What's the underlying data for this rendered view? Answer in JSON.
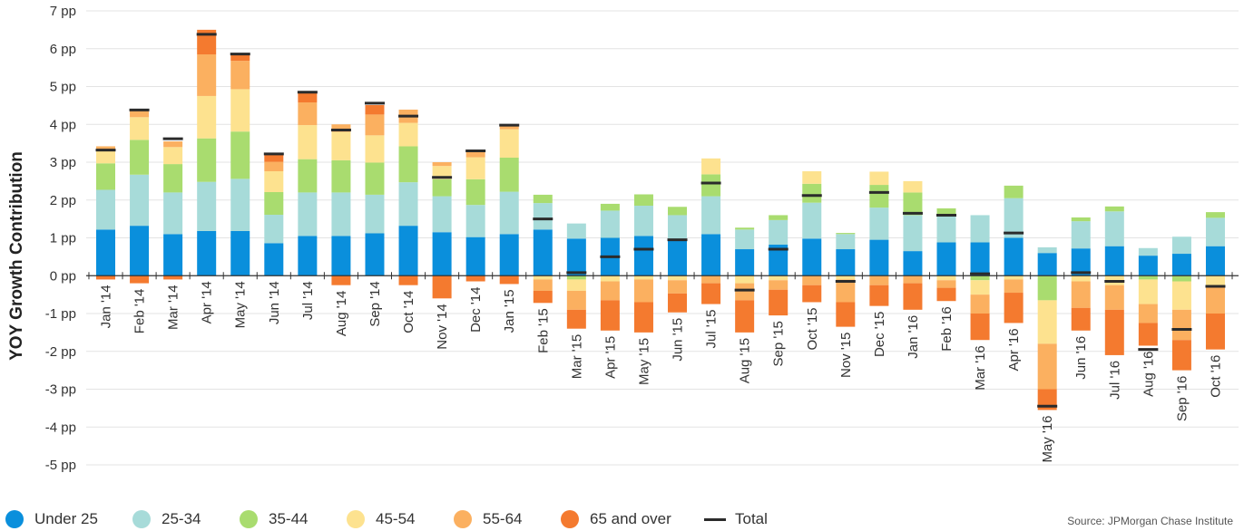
{
  "chart_data": {
    "type": "bar",
    "stacked": true,
    "ylabel": "YOY Growth Contribution",
    "ylim": [
      -5,
      7
    ],
    "yticks": [
      {
        "value": 7,
        "label": "7 pp"
      },
      {
        "value": 6,
        "label": "6 pp"
      },
      {
        "value": 5,
        "label": "5 pp"
      },
      {
        "value": 4,
        "label": "4 pp"
      },
      {
        "value": 3,
        "label": "3 pp"
      },
      {
        "value": 2,
        "label": "2 pp"
      },
      {
        "value": 1,
        "label": "1 pp"
      },
      {
        "value": 0,
        "label": "0 pp"
      },
      {
        "value": -1,
        "label": "-1 pp"
      },
      {
        "value": -2,
        "label": "-2 pp"
      },
      {
        "value": -3,
        "label": "-3 pp"
      },
      {
        "value": -4,
        "label": "-4 pp"
      },
      {
        "value": -5,
        "label": "-5 pp"
      }
    ],
    "grid": true,
    "legend_position": "bottom",
    "categories": [
      "Jan '14",
      "Feb '14",
      "Mar '14",
      "Apr '14",
      "May '14",
      "Jun '14",
      "Jul '14",
      "Aug '14",
      "Sep '14",
      "Oct '14",
      "Nov '14",
      "Dec '14",
      "Jan '15",
      "Feb '15",
      "Mar '15",
      "Apr '15",
      "May '15",
      "Jun '15",
      "Jul '15",
      "Aug '15",
      "Sep '15",
      "Oct '15",
      "Nov '15",
      "Dec '15",
      "Jan '16",
      "Feb '16",
      "Mar '16",
      "Apr '16",
      "May '16",
      "Jun '16",
      "Jul '16",
      "Aug '16",
      "Sep '16",
      "Oct '16"
    ],
    "series": [
      {
        "name": "Under 25",
        "color": "#0a8fdc",
        "values": [
          1.22,
          1.32,
          1.1,
          1.18,
          1.18,
          0.86,
          1.05,
          1.05,
          1.12,
          1.32,
          1.15,
          1.02,
          1.1,
          1.22,
          0.98,
          1.0,
          1.05,
          0.92,
          1.1,
          0.7,
          0.82,
          0.98,
          0.7,
          0.95,
          0.65,
          0.88,
          0.88,
          1.0,
          0.6,
          0.72,
          0.78,
          0.53,
          0.58,
          0.78
        ]
      },
      {
        "name": "25-34",
        "color": "#a7dbd9",
        "values": [
          1.05,
          1.35,
          1.1,
          1.3,
          1.38,
          0.75,
          1.15,
          1.15,
          1.02,
          1.15,
          0.95,
          0.85,
          1.12,
          0.7,
          0.4,
          0.72,
          0.8,
          0.68,
          1.0,
          0.52,
          0.65,
          0.95,
          0.4,
          0.85,
          0.95,
          0.7,
          0.72,
          1.05,
          0.15,
          0.72,
          0.92,
          0.2,
          0.45,
          0.75
        ]
      },
      {
        "name": "35-44",
        "color": "#a9dc6f",
        "values": [
          0.7,
          0.92,
          0.75,
          1.15,
          1.25,
          0.6,
          0.88,
          0.85,
          0.85,
          0.95,
          0.45,
          0.68,
          0.9,
          0.22,
          -0.1,
          0.18,
          0.3,
          0.22,
          0.58,
          0.05,
          0.13,
          0.5,
          0.03,
          0.6,
          0.6,
          0.2,
          -0.12,
          0.33,
          -0.65,
          0.1,
          0.13,
          -0.1,
          -0.15,
          0.15
        ]
      },
      {
        "name": "45-54",
        "color": "#fde28f",
        "values": [
          0.35,
          0.6,
          0.45,
          1.12,
          1.12,
          0.55,
          0.9,
          0.75,
          0.72,
          0.62,
          0.35,
          0.58,
          0.75,
          -0.1,
          -0.3,
          -0.15,
          -0.1,
          -0.12,
          0.42,
          -0.2,
          -0.12,
          0.33,
          -0.1,
          0.35,
          0.3,
          -0.12,
          -0.38,
          -0.1,
          -1.15,
          -0.15,
          -0.25,
          -0.65,
          -0.75,
          -0.3
        ]
      },
      {
        "name": "55-64",
        "color": "#fbb060",
        "values": [
          0.1,
          0.2,
          0.15,
          1.1,
          0.75,
          0.25,
          0.6,
          0.2,
          0.55,
          0.35,
          0.1,
          0.2,
          0.1,
          -0.3,
          -0.5,
          -0.5,
          -0.6,
          -0.35,
          -0.2,
          -0.45,
          -0.25,
          -0.25,
          -0.6,
          -0.25,
          -0.2,
          -0.2,
          -0.5,
          -0.35,
          -1.2,
          -0.7,
          -0.65,
          -0.5,
          -0.8,
          -0.7
        ]
      },
      {
        "name": "65 and over",
        "color": "#f47a2f",
        "values": [
          -0.1,
          -0.2,
          -0.1,
          0.65,
          0.15,
          0.2,
          0.25,
          -0.25,
          0.25,
          -0.25,
          -0.6,
          -0.15,
          -0.22,
          -0.32,
          -0.5,
          -0.8,
          -0.8,
          -0.5,
          -0.55,
          -0.85,
          -0.68,
          -0.45,
          -0.65,
          -0.55,
          -0.7,
          -0.35,
          -0.7,
          -0.8,
          -0.55,
          -0.6,
          -1.2,
          -0.6,
          -0.8,
          -0.95
        ]
      },
      {
        "name": "Total",
        "color": "#2b2b2b",
        "type": "marker",
        "values": [
          3.32,
          4.38,
          3.62,
          6.38,
          5.86,
          3.22,
          4.85,
          3.85,
          4.56,
          4.22,
          2.6,
          3.3,
          3.98,
          1.5,
          0.08,
          0.5,
          0.7,
          0.95,
          2.45,
          -0.38,
          0.7,
          2.12,
          -0.15,
          2.2,
          1.65,
          1.6,
          0.05,
          1.13,
          -3.45,
          0.08,
          -0.15,
          -1.95,
          -1.42,
          -0.28
        ]
      }
    ]
  },
  "source": "Source:  JPMorgan Chase Institute"
}
